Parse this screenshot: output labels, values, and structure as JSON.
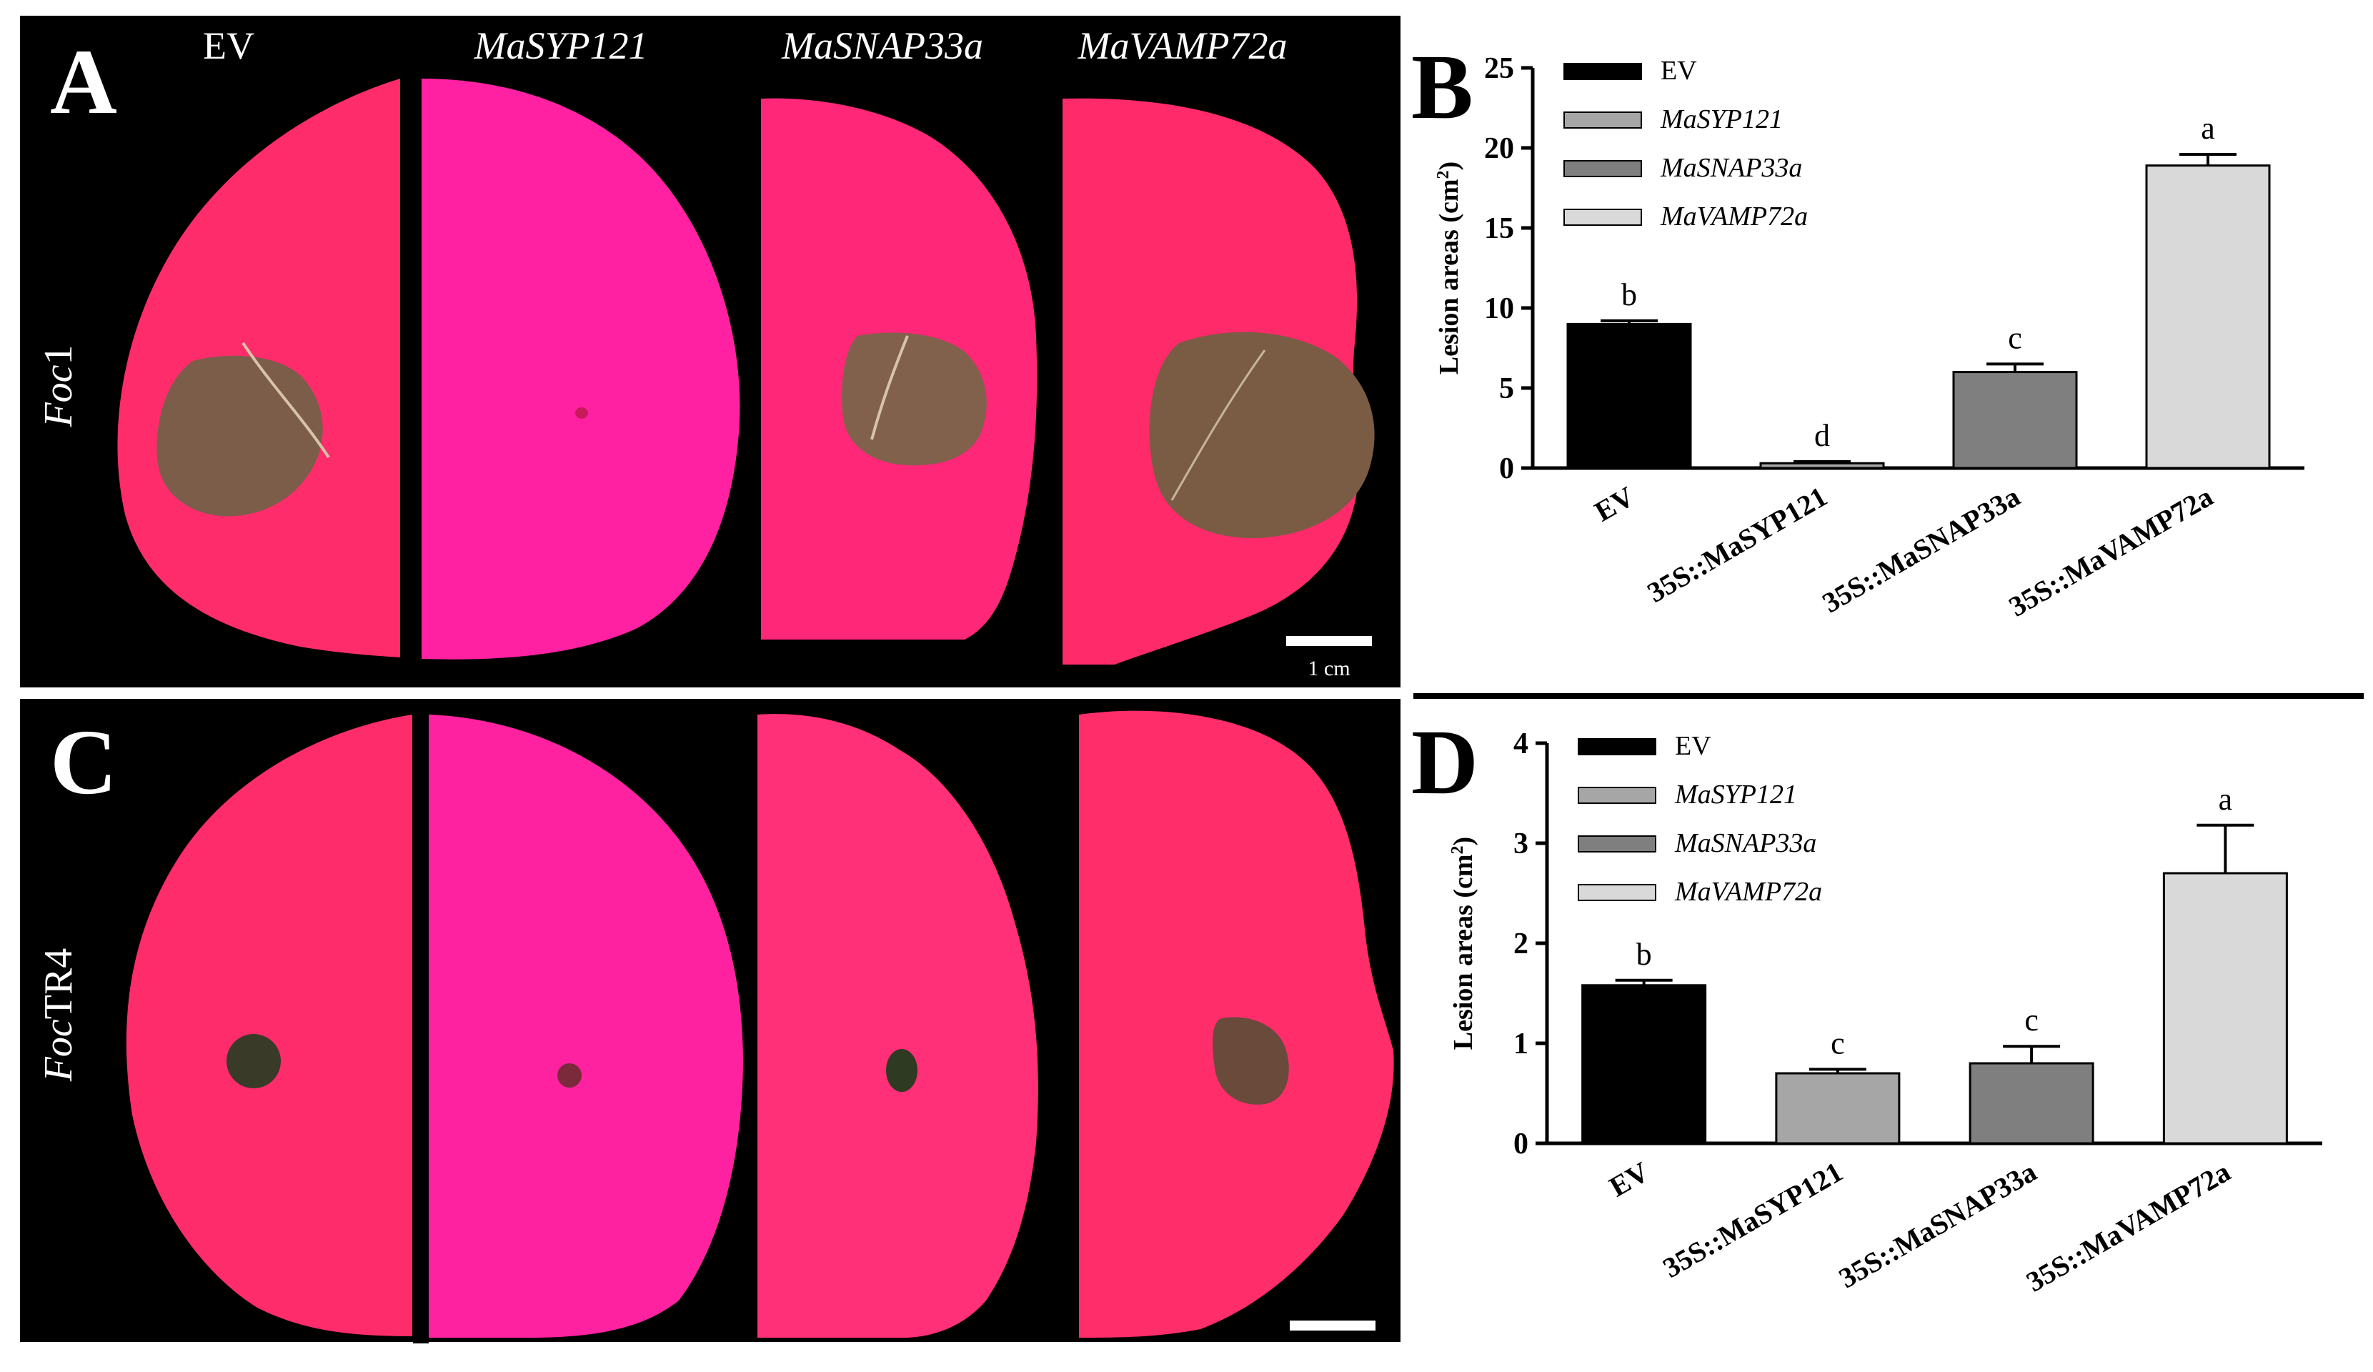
{
  "figure": {
    "panels": {
      "A": {
        "letter": "A",
        "pathogen_prefix": "Foc",
        "pathogen_suffix": "1",
        "scale_bar": "1 cm"
      },
      "C": {
        "letter": "C",
        "pathogen_prefix": "Foc",
        "pathogen_suffix": "TR4",
        "scale_bar": "1 cm"
      },
      "B": {
        "letter": "B"
      },
      "D": {
        "letter": "D"
      }
    },
    "columns": [
      "EV",
      "MaSYP121",
      "MaSNAP33a",
      "MaVAMP72a"
    ],
    "colors": {
      "leaf": "#ff2a6a",
      "leaf_tint": "#ff1f9e",
      "lesion": "#7a5a45",
      "photo_bg": "#000000",
      "EV": "#000000",
      "MaSYP121": "#a6a6a6",
      "MaSNAP33a": "#7f7f7f",
      "MaVAMP72a": "#d9d9d9"
    }
  },
  "chart_data": [
    {
      "panel": "B",
      "type": "bar",
      "title": "",
      "ylabel_text": "Lesion areas (cm",
      "ylabel_sup": "2",
      "ylabel_close": ")",
      "categories": [
        "EV",
        "35S::MaSYP121",
        "35S::MaSNAP33a",
        "35S::MaVAMP72a"
      ],
      "values": [
        9.0,
        0.3,
        6.0,
        18.9
      ],
      "errors": [
        0.2,
        0.1,
        0.5,
        0.7
      ],
      "significance": [
        "b",
        "d",
        "c",
        "a"
      ],
      "legend": [
        "EV",
        "MaSYP121",
        "MaSNAP33a",
        "MaVAMP72a"
      ],
      "legend_italic": [
        false,
        true,
        true,
        true
      ],
      "yticks": [
        "0",
        "5",
        "10",
        "15",
        "20",
        "25"
      ],
      "ylim": [
        0,
        25
      ],
      "legend_position": "top-left"
    },
    {
      "panel": "D",
      "type": "bar",
      "title": "",
      "ylabel_text": "Lesion areas  (cm",
      "ylabel_sup": "2",
      "ylabel_close": ")",
      "categories": [
        "EV",
        "35S::MaSYP121",
        "35S::MaSNAP33a",
        "35S::MaVAMP72a"
      ],
      "values": [
        1.58,
        0.7,
        0.8,
        2.7
      ],
      "errors": [
        0.05,
        0.04,
        0.17,
        0.48
      ],
      "significance": [
        "b",
        "c",
        "c",
        "a"
      ],
      "legend": [
        "EV",
        "MaSYP121",
        "MaSNAP33a",
        "MaVAMP72a"
      ],
      "legend_italic": [
        false,
        true,
        true,
        true
      ],
      "yticks": [
        "0",
        "1",
        "2",
        "3",
        "4"
      ],
      "ylim": [
        0,
        4
      ],
      "legend_position": "top-left"
    }
  ]
}
